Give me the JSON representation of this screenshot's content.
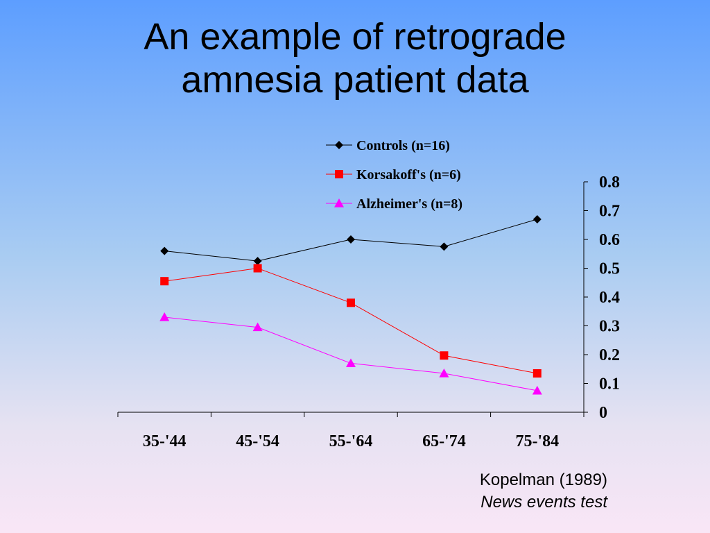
{
  "slide": {
    "title_line1": "An example of retrograde",
    "title_line2": "amnesia patient data",
    "citation": "Kopelman (1989)",
    "citation_sub": "News events test"
  },
  "chart_data": {
    "type": "line",
    "categories": [
      "35-'44",
      "45-'54",
      "55-'64",
      "65-'74",
      "75-'84"
    ],
    "series": [
      {
        "name": "Controls (n=16)",
        "values": [
          0.56,
          0.525,
          0.6,
          0.575,
          0.67
        ],
        "color": "#000000",
        "marker": "diamond"
      },
      {
        "name": "Korsakoff's (n=6)",
        "values": [
          0.455,
          0.5,
          0.38,
          0.197,
          0.135
        ],
        "color": "#ff0000",
        "marker": "square"
      },
      {
        "name": "Alzheimer's (n=8)",
        "values": [
          0.33,
          0.295,
          0.17,
          0.135,
          0.075
        ],
        "color": "#ff00ff",
        "marker": "triangle"
      }
    ],
    "yticks": [
      "0",
      "0.1",
      "0.2",
      "0.3",
      "0.4",
      "0.5",
      "0.6",
      "0.7",
      "0.8"
    ],
    "ylim": [
      0,
      0.8
    ],
    "y_axis_side": "right",
    "grid": false,
    "legend_position": "top"
  }
}
